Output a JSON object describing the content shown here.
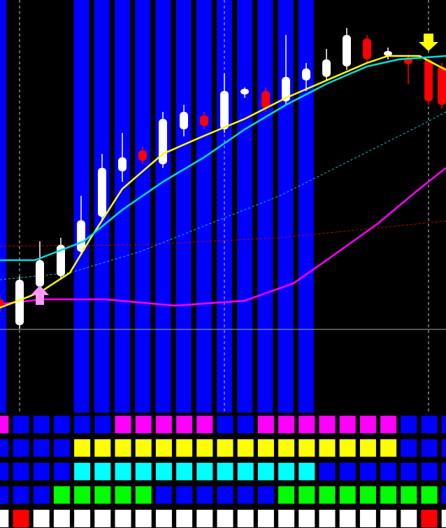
{
  "screen": {
    "indicator_rows": [
      [
        "#ff00ff",
        "#0000ff",
        "#0000ff",
        "#0000ff",
        "#0000ff",
        "#0000ff",
        "#ff00ff",
        "#ff00ff",
        "#ff00ff",
        "#ff00ff",
        "#ff00ff",
        "#0000ff",
        "#0000ff",
        "#ff00ff",
        "#ff00ff",
        "#ff00ff",
        "#ff00ff",
        "#ff00ff",
        "#ff00ff",
        "#ff00ff",
        "#0000ff",
        "#0000ff",
        "#0000ff"
      ],
      [
        "#0000ff",
        "#0000ff",
        "#0000ff",
        "#0000ff",
        "#ffff00",
        "#ffff00",
        "#ffff00",
        "#ffff00",
        "#ffff00",
        "#ffff00",
        "#ffff00",
        "#ffff00",
        "#ffff00",
        "#ffff00",
        "#ffff00",
        "#ffff00",
        "#ffff00",
        "#ffff00",
        "#ffff00",
        "#ffff00",
        "#0000ff",
        "#0000ff",
        "#0000ff"
      ],
      [
        "#0000ff",
        "#0000ff",
        "#0000ff",
        "#0000ff",
        "#00ffff",
        "#00ffff",
        "#00ffff",
        "#00ffff",
        "#00ffff",
        "#00ffff",
        "#00ffff",
        "#00ffff",
        "#00ffff",
        "#00ffff",
        "#00ffff",
        "#00ffff",
        "#0000ff",
        "#0000ff",
        "#0000ff",
        "#0000ff",
        "#0000ff",
        "#0000ff",
        "#0000ff"
      ],
      [
        "#0000ff",
        "#0000ff",
        "#0000ff",
        "#00ff00",
        "#00ff00",
        "#00ff00",
        "#00ff00",
        "#00ff00",
        "#0000ff",
        "#0000ff",
        "#0000ff",
        "#0000ff",
        "#0000ff",
        "#0000ff",
        "#00ff00",
        "#00ff00",
        "#00ff00",
        "#00ff00",
        "#00ff00",
        "#00ff00",
        "#00ff00",
        "#00ff00",
        "#0000ff"
      ],
      [
        "#ffffff",
        "#ff0000",
        "#ffffff",
        "#ffffff",
        "#ffffff",
        "#ffffff",
        "#ffffff",
        "#ffffff",
        "#ffffff",
        "#ffffff",
        "#ffffff",
        "#ffffff",
        "#ffffff",
        "#ffffff",
        "#ffffff",
        "#ffffff",
        "#ffffff",
        "#ffffff",
        "#ffffff",
        "#ffffff",
        "#ffffff",
        "#ff0000",
        "#ffffff"
      ]
    ]
  }
}
